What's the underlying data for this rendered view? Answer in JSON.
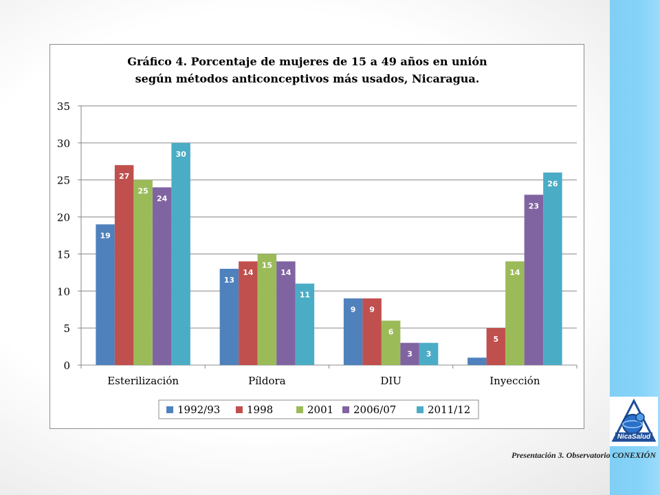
{
  "slide": {
    "caption": "Presentación 3. Observatorio CONEXIÓN",
    "logo_text": "NicaSalud"
  },
  "colors": {
    "series": [
      "#4f81bd",
      "#c0504d",
      "#9bbb59",
      "#8064a2",
      "#4bacc6"
    ],
    "side_band": "#86d3f8"
  },
  "chart_data": {
    "type": "bar",
    "title_lines": [
      "Gráfico 4. Porcentaje de mujeres de 15 a 49 años en unión",
      "según métodos anticonceptivos más usados, Nicaragua."
    ],
    "categories": [
      "Esterilización",
      "Píldora",
      "DIU",
      "Inyección"
    ],
    "series": [
      {
        "name": "1992/93",
        "values": [
          19,
          13,
          9,
          1
        ]
      },
      {
        "name": "1998",
        "values": [
          27,
          14,
          9,
          5
        ]
      },
      {
        "name": "2001",
        "values": [
          25,
          15,
          6,
          14
        ]
      },
      {
        "name": "2006/07",
        "values": [
          24,
          14,
          3,
          23
        ]
      },
      {
        "name": "2011/12",
        "values": [
          30,
          11,
          3,
          26
        ]
      }
    ],
    "ylim": [
      0,
      35
    ],
    "yticks": [
      0,
      5,
      10,
      15,
      20,
      25,
      30,
      35
    ],
    "grid": true,
    "legend": "bottom",
    "data_labels": true
  }
}
